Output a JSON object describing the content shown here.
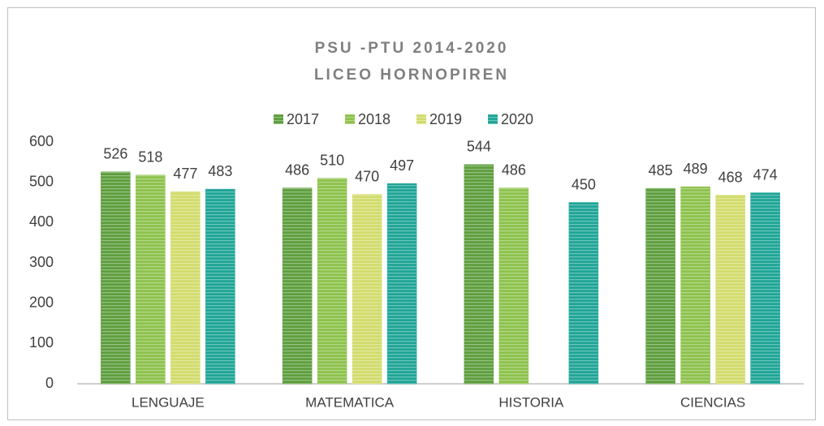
{
  "chart_data": {
    "type": "bar",
    "title": "PSU -PTU 2014-2020",
    "subtitle": "LICEO HORNOPIREN",
    "categories": [
      "LENGUAJE",
      "MATEMATICA",
      "HISTORIA",
      "CIENCIAS"
    ],
    "series": [
      {
        "name": "2017",
        "color": "#5e9e3e",
        "values": [
          526,
          486,
          544,
          485
        ]
      },
      {
        "name": "2018",
        "color": "#8dc24c",
        "values": [
          518,
          510,
          486,
          489
        ]
      },
      {
        "name": "2019",
        "color": "#d2dc6c",
        "values": [
          477,
          470,
          null,
          468
        ]
      },
      {
        "name": "2020",
        "color": "#1fa596",
        "values": [
          483,
          497,
          450,
          474
        ]
      }
    ],
    "ylim": [
      0,
      600
    ],
    "yticks": [
      0,
      100,
      200,
      300,
      400,
      500,
      600
    ],
    "grid": false,
    "legend": "top"
  }
}
